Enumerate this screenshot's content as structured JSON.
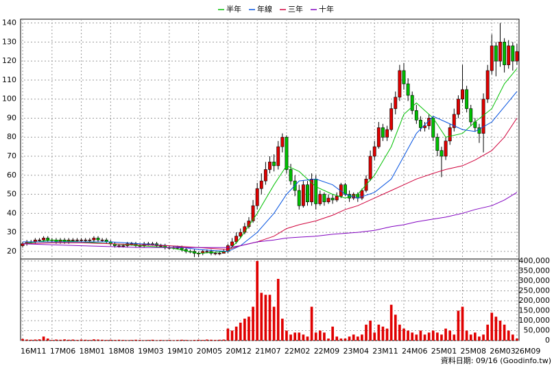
{
  "chart_data": [
    {
      "type": "candlestick",
      "legend": "top",
      "up_color": "#e00000",
      "down_color": "#00c000",
      "categories": [
        "16M11",
        null,
        null,
        null,
        null,
        null,
        null,
        "17M06",
        null,
        null,
        null,
        null,
        null,
        null,
        "18M01",
        null,
        null,
        null,
        null,
        null,
        null,
        "18M08",
        null,
        null,
        null,
        null,
        null,
        null,
        "19M03",
        null,
        null,
        null,
        null,
        null,
        null,
        "19M10",
        null,
        null,
        null,
        null,
        null,
        null,
        "20M05",
        null,
        null,
        null,
        null,
        null,
        null,
        "20M12",
        null,
        null,
        null,
        null,
        null,
        null,
        "21M07",
        null,
        null,
        null,
        null,
        null,
        null,
        "22M02",
        null,
        null,
        null,
        null,
        null,
        null,
        "22M09",
        null,
        null,
        null,
        null,
        null,
        null,
        "23M04",
        null,
        null,
        null,
        null,
        null,
        null,
        "23M11",
        null,
        null,
        null,
        null,
        null,
        null,
        "24M06",
        null,
        null,
        null,
        null,
        null,
        null,
        "25M01",
        null,
        null,
        null,
        null,
        null,
        null,
        "25M08",
        null,
        null,
        null,
        null,
        null,
        null,
        "26M03",
        null,
        null,
        null,
        null,
        null,
        "26M09"
      ],
      "open": [
        23,
        24,
        25,
        25,
        26,
        26,
        27,
        26,
        26,
        25,
        26,
        25,
        26,
        26,
        26,
        26,
        26,
        26,
        27,
        26,
        26,
        25,
        24,
        23,
        23,
        23,
        24,
        24,
        23,
        23,
        24,
        24,
        24,
        23,
        23,
        22,
        22,
        22,
        22,
        21,
        20,
        20,
        19,
        19,
        20,
        20,
        19,
        19,
        19,
        20,
        23,
        25,
        28,
        30,
        33,
        36,
        44,
        53,
        57,
        63,
        67,
        65,
        75,
        80,
        63,
        57,
        52,
        44,
        55,
        46,
        58,
        45,
        50,
        46,
        48,
        47,
        49,
        55,
        50,
        48,
        50,
        48,
        52,
        58,
        70,
        75,
        85,
        80,
        84,
        95,
        101,
        115,
        108,
        102,
        94,
        89,
        85,
        86,
        90,
        80,
        73,
        70,
        78,
        85,
        92,
        100,
        105,
        95,
        88,
        85,
        82,
        100,
        115,
        128,
        120,
        130,
        118,
        128,
        120
      ],
      "high": [
        25,
        26,
        26,
        27,
        27,
        28,
        28,
        27,
        27,
        27,
        27,
        27,
        27,
        27,
        27,
        27,
        27,
        28,
        28,
        27,
        27,
        26,
        25,
        24,
        24,
        25,
        25,
        25,
        24,
        25,
        25,
        25,
        25,
        24,
        24,
        23,
        23,
        23,
        23,
        22,
        21,
        21,
        20,
        21,
        21,
        21,
        20,
        20,
        21,
        24,
        27,
        30,
        32,
        35,
        38,
        47,
        56,
        61,
        67,
        70,
        71,
        78,
        82,
        81,
        66,
        60,
        55,
        57,
        57,
        61,
        60,
        52,
        51,
        50,
        50,
        51,
        56,
        56,
        52,
        51,
        51,
        53,
        60,
        73,
        78,
        88,
        87,
        86,
        98,
        104,
        118,
        119,
        111,
        104,
        97,
        91,
        88,
        92,
        91,
        82,
        75,
        80,
        87,
        95,
        102,
        118,
        107,
        97,
        90,
        87,
        103,
        118,
        134,
        130,
        140,
        132,
        131,
        130,
        129
      ],
      "low": [
        22,
        23,
        24,
        24,
        25,
        25,
        25,
        25,
        24,
        24,
        24,
        24,
        25,
        25,
        25,
        25,
        25,
        25,
        25,
        25,
        24,
        23,
        22,
        22,
        22,
        22,
        23,
        22,
        22,
        22,
        23,
        23,
        22,
        22,
        21,
        21,
        21,
        21,
        20,
        19,
        19,
        17,
        17,
        18,
        19,
        18,
        18,
        18,
        19,
        19,
        22,
        24,
        27,
        29,
        32,
        35,
        42,
        50,
        55,
        61,
        62,
        63,
        72,
        61,
        55,
        49,
        42,
        43,
        44,
        44,
        42,
        44,
        44,
        45,
        45,
        46,
        48,
        49,
        46,
        47,
        46,
        47,
        51,
        57,
        68,
        74,
        78,
        78,
        83,
        92,
        99,
        105,
        99,
        92,
        87,
        83,
        83,
        84,
        78,
        70,
        59,
        68,
        76,
        83,
        90,
        98,
        93,
        86,
        83,
        77,
        72,
        98,
        113,
        112,
        117,
        114,
        116,
        115,
        118
      ],
      "close": [
        24,
        25,
        25,
        26,
        26,
        27,
        26,
        26,
        25,
        26,
        25,
        26,
        26,
        26,
        26,
        26,
        26,
        27,
        26,
        26,
        25,
        24,
        23,
        23,
        23,
        24,
        24,
        23,
        23,
        24,
        24,
        24,
        23,
        23,
        22,
        22,
        22,
        22,
        21,
        20,
        20,
        19,
        19,
        20,
        20,
        19,
        19,
        19,
        20,
        23,
        25,
        28,
        30,
        33,
        36,
        44,
        53,
        57,
        63,
        67,
        65,
        75,
        80,
        63,
        57,
        52,
        44,
        55,
        46,
        58,
        45,
        50,
        46,
        48,
        47,
        49,
        55,
        50,
        48,
        50,
        48,
        52,
        58,
        70,
        75,
        85,
        80,
        84,
        95,
        101,
        115,
        108,
        102,
        94,
        89,
        85,
        86,
        90,
        80,
        73,
        70,
        78,
        85,
        92,
        100,
        105,
        95,
        88,
        85,
        82,
        100,
        115,
        128,
        120,
        130,
        118,
        128,
        120,
        125
      ],
      "ylim": [
        16,
        142
      ],
      "yticks": [
        20,
        30,
        40,
        50,
        60,
        70,
        80,
        90,
        100,
        110,
        120,
        130,
        140
      ],
      "grid": true,
      "series": [
        {
          "name": "半年",
          "color": "#00c000",
          "x": [
            0,
            7,
            14,
            21,
            28,
            35,
            42,
            49,
            52,
            56,
            60,
            63,
            66,
            70,
            74,
            77,
            80,
            84,
            88,
            91,
            94,
            98,
            101,
            105,
            108,
            112,
            115,
            118
          ],
          "values": [
            24,
            26,
            25,
            24,
            23,
            22,
            19,
            20,
            27,
            40,
            55,
            65,
            62,
            54,
            50,
            48,
            50,
            60,
            75,
            92,
            98,
            90,
            80,
            82,
            88,
            95,
            108,
            116
          ]
        },
        {
          "name": "年線",
          "color": "#0050e0",
          "x": [
            0,
            7,
            14,
            21,
            28,
            35,
            42,
            49,
            52,
            56,
            60,
            63,
            66,
            70,
            74,
            77,
            80,
            84,
            88,
            91,
            94,
            98,
            101,
            105,
            108,
            112,
            115,
            118
          ],
          "values": [
            25,
            25,
            25,
            25,
            24,
            23,
            21,
            20,
            23,
            30,
            40,
            50,
            57,
            58,
            55,
            50,
            48,
            51,
            58,
            70,
            82,
            91,
            88,
            84,
            83,
            88,
            96,
            104
          ]
        },
        {
          "name": "三年",
          "color": "#d0003a",
          "x": [
            0,
            7,
            14,
            21,
            28,
            35,
            42,
            49,
            52,
            56,
            60,
            63,
            66,
            70,
            74,
            77,
            80,
            84,
            88,
            91,
            94,
            98,
            101,
            105,
            108,
            112,
            115,
            118
          ],
          "values": [
            24,
            24.5,
            24.5,
            24,
            23.5,
            23,
            22,
            21,
            23,
            25,
            28,
            32,
            34,
            36,
            39,
            42,
            44,
            48,
            52,
            55,
            58,
            61,
            63,
            65,
            68,
            73,
            80,
            90
          ]
        },
        {
          "name": "十年",
          "color": "#8000c0",
          "x": [
            0,
            7,
            14,
            21,
            28,
            35,
            42,
            49,
            52,
            56,
            60,
            63,
            66,
            70,
            74,
            77,
            80,
            84,
            88,
            91,
            94,
            98,
            101,
            105,
            108,
            112,
            115,
            118
          ],
          "values": [
            24,
            23.5,
            23,
            22.5,
            22,
            22,
            22,
            22,
            23,
            25,
            26,
            27,
            27.5,
            28,
            29,
            29.5,
            30,
            31,
            33,
            34,
            35.5,
            37,
            38,
            40,
            42,
            44,
            47,
            51
          ]
        }
      ]
    },
    {
      "type": "bar",
      "color": "#e00000",
      "values": [
        8000,
        5000,
        4000,
        5000,
        6000,
        20000,
        10000,
        3000,
        5000,
        4000,
        6000,
        4000,
        5000,
        3000,
        5000,
        4000,
        3000,
        6000,
        5000,
        4000,
        3000,
        4000,
        3000,
        4000,
        3000,
        2000,
        3000,
        4000,
        3000,
        2000,
        3000,
        4000,
        2000,
        3000,
        2000,
        3000,
        2000,
        3000,
        4000,
        3000,
        2000,
        3000,
        4000,
        3000,
        5000,
        4000,
        3000,
        4000,
        5000,
        60000,
        50000,
        70000,
        90000,
        110000,
        120000,
        170000,
        400000,
        240000,
        230000,
        230000,
        170000,
        310000,
        110000,
        50000,
        30000,
        40000,
        40000,
        30000,
        20000,
        170000,
        40000,
        50000,
        40000,
        10000,
        70000,
        20000,
        10000,
        10000,
        20000,
        30000,
        20000,
        30000,
        80000,
        100000,
        40000,
        80000,
        70000,
        60000,
        180000,
        130000,
        80000,
        60000,
        50000,
        40000,
        30000,
        50000,
        30000,
        40000,
        50000,
        40000,
        30000,
        60000,
        50000,
        30000,
        150000,
        170000,
        50000,
        30000,
        40000,
        20000,
        30000,
        80000,
        140000,
        120000,
        100000,
        80000,
        50000,
        30000,
        10000
      ],
      "ylim": [
        0,
        410000
      ],
      "yticks": [
        0,
        {
          "value": 50000,
          "label": "50,000"
        },
        {
          "value": 100000,
          "label": "100,000"
        },
        {
          "value": 150000,
          "label": "150,000"
        },
        {
          "value": 200000,
          "label": "200,000"
        },
        {
          "value": 250000,
          "label": "250,000"
        },
        {
          "value": 300000,
          "label": "300,000"
        },
        {
          "value": 350000,
          "label": "350,000"
        },
        {
          "value": 400000,
          "label": "400,000"
        }
      ],
      "grid": true,
      "source": "資料日期: 09/16  (Goodinfo.tw)"
    }
  ]
}
